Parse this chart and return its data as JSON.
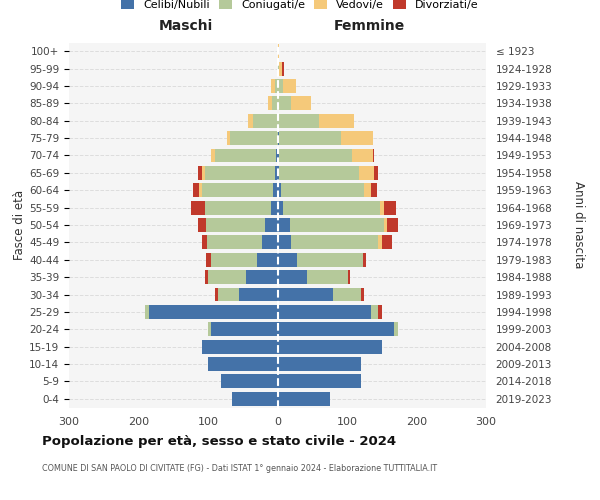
{
  "age_groups": [
    "0-4",
    "5-9",
    "10-14",
    "15-19",
    "20-24",
    "25-29",
    "30-34",
    "35-39",
    "40-44",
    "45-49",
    "50-54",
    "55-59",
    "60-64",
    "65-69",
    "70-74",
    "75-79",
    "80-84",
    "85-89",
    "90-94",
    "95-99",
    "100+"
  ],
  "birth_years": [
    "2019-2023",
    "2014-2018",
    "2009-2013",
    "2004-2008",
    "1999-2003",
    "1994-1998",
    "1989-1993",
    "1984-1988",
    "1979-1983",
    "1974-1978",
    "1969-1973",
    "1964-1968",
    "1959-1963",
    "1954-1958",
    "1949-1953",
    "1944-1948",
    "1939-1943",
    "1934-1938",
    "1929-1933",
    "1924-1928",
    "≤ 1923"
  ],
  "male_celibi": [
    65,
    82,
    100,
    108,
    95,
    185,
    55,
    45,
    30,
    23,
    18,
    9,
    6,
    4,
    2,
    0,
    0,
    0,
    0,
    0,
    0
  ],
  "male_coniugati": [
    0,
    0,
    0,
    0,
    5,
    5,
    30,
    55,
    65,
    78,
    85,
    96,
    102,
    100,
    88,
    68,
    35,
    8,
    4,
    0,
    0
  ],
  "male_vedovi": [
    0,
    0,
    0,
    0,
    0,
    0,
    0,
    0,
    0,
    0,
    0,
    0,
    5,
    5,
    5,
    5,
    8,
    5,
    5,
    0,
    0
  ],
  "male_divorziati": [
    0,
    0,
    0,
    0,
    0,
    0,
    5,
    5,
    8,
    8,
    12,
    20,
    8,
    5,
    0,
    0,
    0,
    0,
    0,
    0,
    0
  ],
  "female_nubili": [
    75,
    120,
    120,
    150,
    168,
    135,
    80,
    42,
    28,
    20,
    18,
    8,
    5,
    2,
    2,
    2,
    0,
    0,
    0,
    0,
    0
  ],
  "female_coniugate": [
    0,
    0,
    0,
    0,
    5,
    10,
    40,
    60,
    95,
    125,
    135,
    140,
    120,
    115,
    105,
    90,
    60,
    20,
    8,
    2,
    0
  ],
  "female_vedove": [
    0,
    0,
    0,
    0,
    0,
    0,
    0,
    0,
    0,
    5,
    5,
    5,
    10,
    22,
    30,
    45,
    50,
    28,
    18,
    4,
    2
  ],
  "female_divorziate": [
    0,
    0,
    0,
    0,
    0,
    5,
    5,
    2,
    5,
    15,
    15,
    18,
    8,
    5,
    2,
    0,
    0,
    0,
    0,
    3,
    0
  ],
  "color_celibi": "#4472a8",
  "color_coniugati": "#b5c99a",
  "color_vedovi": "#f5c97a",
  "color_divorziati": "#c0392b",
  "xlim": 300,
  "title_main": "Popolazione per età, sesso e stato civile - 2024",
  "title_sub": "COMUNE DI SAN PAOLO DI CIVITATE (FG) - Dati ISTAT 1° gennaio 2024 - Elaborazione TUTTITALIA.IT",
  "label_maschi": "Maschi",
  "label_femmine": "Femmine",
  "label_fasce": "Fasce di età",
  "label_anni": "Anni di nascita",
  "legend_labels": [
    "Celibi/Nubili",
    "Coniugati/e",
    "Vedovi/e",
    "Divorziati/e"
  ],
  "xticks": [
    -300,
    -200,
    -100,
    0,
    100,
    200,
    300
  ],
  "bg_axes": "#f5f5f5",
  "grid_color": "#dddddd"
}
